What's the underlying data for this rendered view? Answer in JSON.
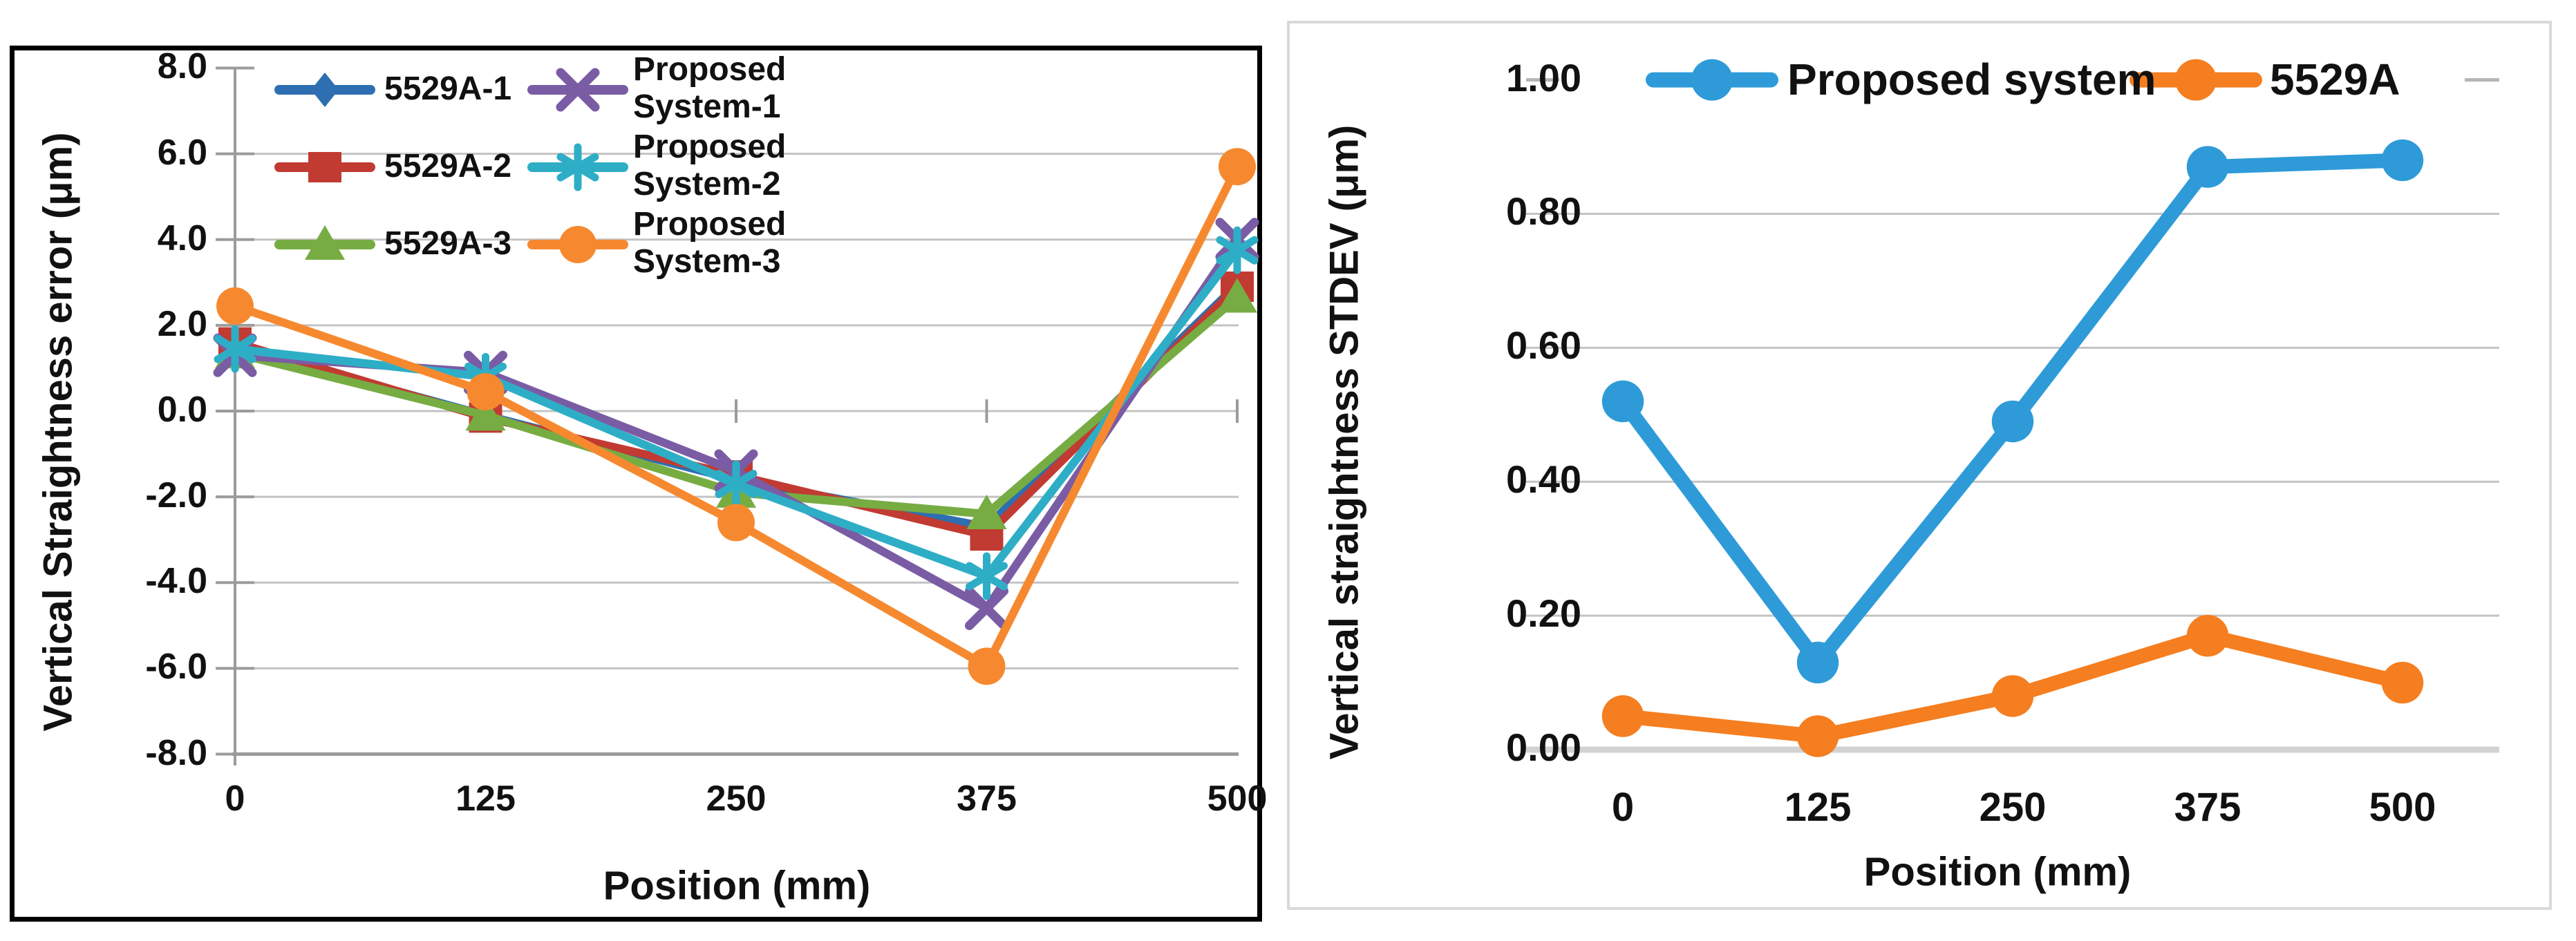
{
  "figure": {
    "description": "Two Excel-style line charts comparing straightness measurements",
    "background_color": "#FFFFFF",
    "left_panel_border_color": "#000000",
    "right_panel_border_color": "#D9D9D9",
    "gridline_color": "#C3C3C3",
    "axis_line_color": "#9B9B9B"
  },
  "chart_data": [
    {
      "id": "left",
      "type": "line",
      "title": "",
      "xlabel": "Position (mm)",
      "ylabel": "Vertical Straightness error (μm)",
      "categories": [
        0,
        125,
        250,
        375,
        500
      ],
      "x_tick_labels": [
        "0",
        "125",
        "250",
        "375",
        "500"
      ],
      "y_tick_labels": [
        "8.0",
        "6.0",
        "4.0",
        "2.0",
        "0.0",
        "-2.0",
        "-4.0",
        "-6.0",
        "-8.0"
      ],
      "ylim": [
        -8.0,
        8.0
      ],
      "grid": "horizontal",
      "legend_position": "top-inside-two-columns",
      "series": [
        {
          "name": "5529A-1",
          "marker": "diamond",
          "color": "#2D6FB0",
          "legend_lines": [
            "5529A-1"
          ],
          "values": [
            1.5,
            -0.1,
            -1.6,
            -2.7,
            2.95
          ]
        },
        {
          "name": "5529A-2",
          "marker": "square",
          "color": "#C13B32",
          "legend_lines": [
            "5529A-2"
          ],
          "values": [
            1.6,
            -0.15,
            -1.5,
            -2.9,
            2.9
          ]
        },
        {
          "name": "5529A-3",
          "marker": "triangle",
          "color": "#77AC43",
          "legend_lines": [
            "5529A-3"
          ],
          "values": [
            1.35,
            -0.1,
            -1.9,
            -2.4,
            2.65
          ]
        },
        {
          "name": "Proposed System-1",
          "marker": "x",
          "color": "#7A5CA5",
          "legend_lines": [
            "Proposed",
            "System-1"
          ],
          "values": [
            1.3,
            0.9,
            -1.4,
            -4.6,
            4.0
          ]
        },
        {
          "name": "Proposed System-2",
          "marker": "asterisk",
          "color": "#2EAEC6",
          "legend_lines": [
            "Proposed",
            "System-2"
          ],
          "values": [
            1.45,
            0.8,
            -1.7,
            -3.85,
            3.75
          ]
        },
        {
          "name": "Proposed System-3",
          "marker": "circle",
          "color": "#F6892F",
          "legend_lines": [
            "Proposed",
            "System-3"
          ],
          "values": [
            2.45,
            0.45,
            -2.6,
            -5.95,
            5.7
          ]
        }
      ]
    },
    {
      "id": "right",
      "type": "line",
      "title": "",
      "xlabel": "Position (mm)",
      "ylabel": "Vertical straightness STDEV (μm)",
      "categories": [
        0,
        125,
        250,
        375,
        500
      ],
      "x_tick_labels": [
        "0",
        "125",
        "250",
        "375",
        "500"
      ],
      "y_tick_labels": [
        "1.00",
        "0.80",
        "0.60",
        "0.40",
        "0.20",
        "0.00"
      ],
      "ylim": [
        0.0,
        1.0
      ],
      "grid": "horizontal",
      "legend_position": "top-inline",
      "series": [
        {
          "name": "Proposed system",
          "marker": "circle",
          "color": "#2E9BD8",
          "legend_lines": [
            "Proposed system"
          ],
          "values": [
            0.52,
            0.13,
            0.49,
            0.87,
            0.88
          ]
        },
        {
          "name": "5529A",
          "marker": "circle",
          "color": "#F57E20",
          "legend_lines": [
            "5529A"
          ],
          "values": [
            0.05,
            0.02,
            0.08,
            0.17,
            0.1
          ]
        }
      ]
    }
  ]
}
